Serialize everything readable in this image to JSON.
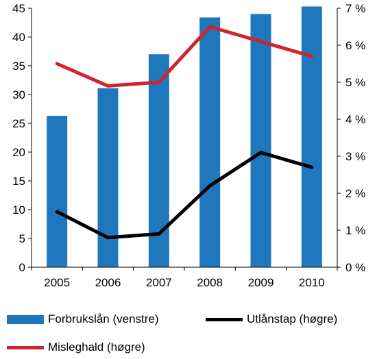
{
  "colors": {
    "bar": "#1f77bd",
    "loss": "#000000",
    "default": "#d0232e",
    "axis": "#000000"
  },
  "chart_data": {
    "type": "bar",
    "categories": [
      "2005",
      "2006",
      "2007",
      "2008",
      "2009",
      "2010"
    ],
    "series": [
      {
        "name": "Forbrukslån (venstre)",
        "type": "bar",
        "axis": "left",
        "values": [
          26.3,
          31.1,
          37.0,
          43.4,
          44.0,
          45.3
        ]
      },
      {
        "name": "Utlånstap (høgre)",
        "type": "line",
        "axis": "right",
        "values": [
          1.5,
          0.8,
          0.9,
          2.2,
          3.1,
          2.7
        ]
      },
      {
        "name": "Misleghald (høgre)",
        "type": "line",
        "axis": "right",
        "values": [
          5.5,
          4.9,
          5.0,
          6.5,
          6.1,
          5.7
        ]
      }
    ],
    "left_axis": {
      "ylim": [
        0,
        45
      ],
      "ticks": [
        "0",
        "5",
        "10",
        "15",
        "20",
        "25",
        "30",
        "35",
        "40",
        "45"
      ]
    },
    "right_axis": {
      "ylim": [
        0,
        7
      ],
      "ticks": [
        "0 %",
        "1 %",
        "2 %",
        "3 %",
        "4 %",
        "5 %",
        "6 %",
        "7 %"
      ]
    },
    "legend_position": "bottom",
    "grid": false
  }
}
